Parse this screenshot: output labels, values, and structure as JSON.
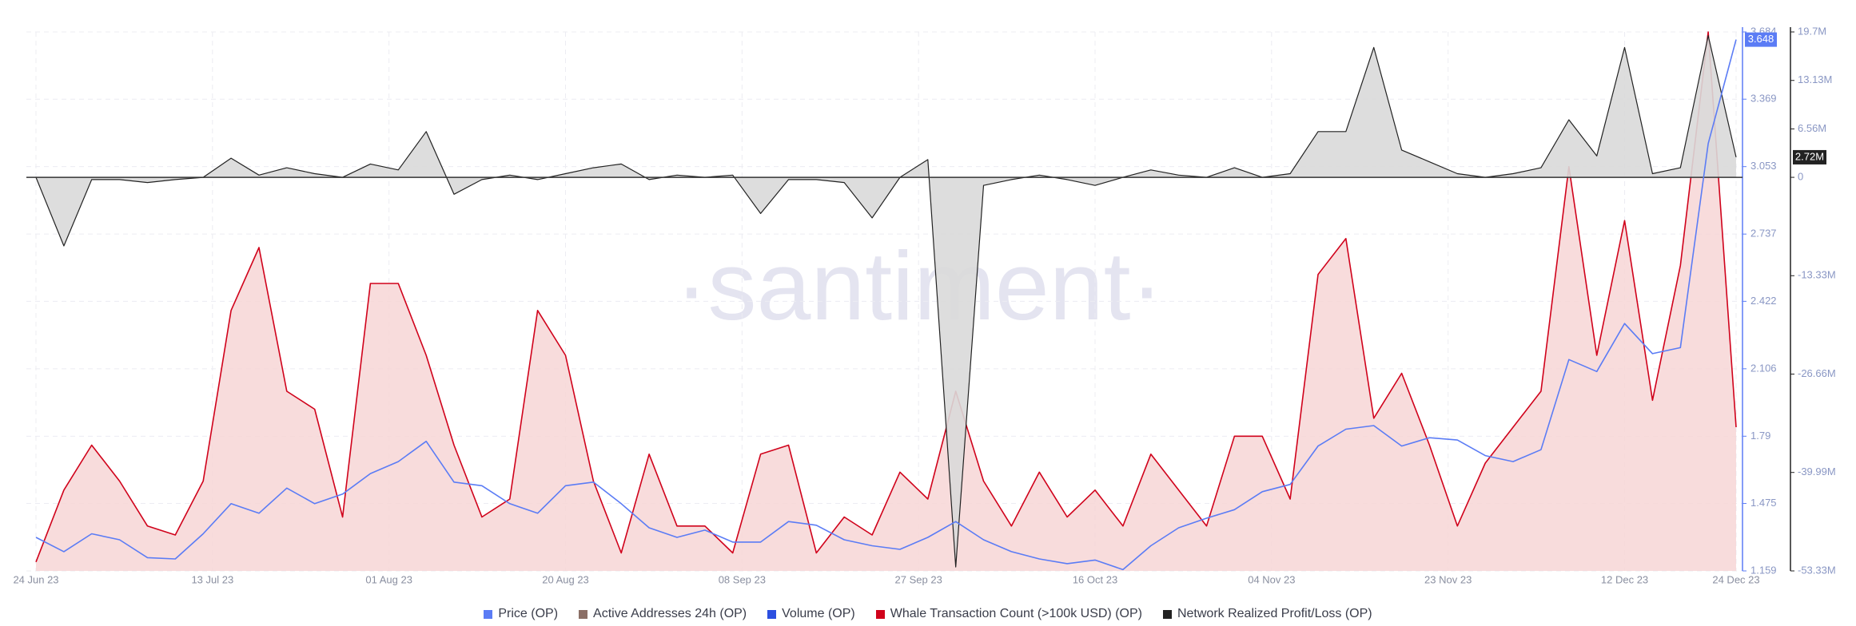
{
  "chart_data": {
    "type": "line",
    "watermark": "·santiment·",
    "x": [
      "2023-06-24",
      "2023-06-27",
      "2023-06-30",
      "2023-07-03",
      "2023-07-06",
      "2023-07-09",
      "2023-07-12",
      "2023-07-15",
      "2023-07-18",
      "2023-07-21",
      "2023-07-24",
      "2023-07-27",
      "2023-07-30",
      "2023-08-02",
      "2023-08-05",
      "2023-08-08",
      "2023-08-11",
      "2023-08-14",
      "2023-08-17",
      "2023-08-20",
      "2023-08-23",
      "2023-08-26",
      "2023-08-29",
      "2023-09-01",
      "2023-09-04",
      "2023-09-07",
      "2023-09-10",
      "2023-09-13",
      "2023-09-16",
      "2023-09-19",
      "2023-09-22",
      "2023-09-25",
      "2023-09-28",
      "2023-10-01",
      "2023-10-04",
      "2023-10-07",
      "2023-10-10",
      "2023-10-13",
      "2023-10-16",
      "2023-10-19",
      "2023-10-22",
      "2023-10-25",
      "2023-10-28",
      "2023-10-31",
      "2023-11-03",
      "2023-11-06",
      "2023-11-09",
      "2023-11-12",
      "2023-11-15",
      "2023-11-18",
      "2023-11-21",
      "2023-11-24",
      "2023-11-27",
      "2023-11-30",
      "2023-12-03",
      "2023-12-06",
      "2023-12-09",
      "2023-12-12",
      "2023-12-15",
      "2023-12-18",
      "2023-12-21",
      "2023-12-24"
    ],
    "xticks": [
      {
        "value": "2023-06-24",
        "label": "24 Jun 23"
      },
      {
        "value": "2023-07-13",
        "label": "13 Jul 23"
      },
      {
        "value": "2023-08-01",
        "label": "01 Aug 23"
      },
      {
        "value": "2023-08-20",
        "label": "20 Aug 23"
      },
      {
        "value": "2023-09-08",
        "label": "08 Sep 23"
      },
      {
        "value": "2023-09-27",
        "label": "27 Sep 23"
      },
      {
        "value": "2023-10-16",
        "label": "16 Oct 23"
      },
      {
        "value": "2023-11-04",
        "label": "04 Nov 23"
      },
      {
        "value": "2023-11-23",
        "label": "23 Nov 23"
      },
      {
        "value": "2023-12-12",
        "label": "12 Dec 23"
      },
      {
        "value": "2023-12-24",
        "label": "24 Dec 23"
      }
    ],
    "ylim": [
      1.159,
      3.684
    ],
    "yticks": [
      1.159,
      1.475,
      1.79,
      2.106,
      2.422,
      2.737,
      3.053,
      3.369,
      3.684
    ],
    "y2lim": [
      -53330000,
      19700000
    ],
    "y2ticks": [
      {
        "value": 19700000,
        "label": "19.7M"
      },
      {
        "value": 13130000,
        "label": "13.13M"
      },
      {
        "value": 6560000,
        "label": "6.56M"
      },
      0,
      {
        "value": -13330000,
        "label": "-13.33M"
      },
      {
        "value": -26660000,
        "label": "-26.66M"
      },
      {
        "value": -39990000,
        "label": "-39.99M"
      },
      {
        "value": -53330000,
        "label": "-53.33M"
      }
    ],
    "y3lim": [
      0,
      60
    ],
    "grid": true,
    "series": [
      {
        "name": "Price (OP)",
        "color": "#5b7cf5",
        "last_value_marker": true,
        "values": [
          1.316,
          1.249,
          1.333,
          1.305,
          1.221,
          1.215,
          1.333,
          1.474,
          1.429,
          1.547,
          1.474,
          1.519,
          1.615,
          1.671,
          1.766,
          1.575,
          1.558,
          1.474,
          1.429,
          1.558,
          1.575,
          1.474,
          1.361,
          1.316,
          1.35,
          1.294,
          1.294,
          1.39,
          1.373,
          1.305,
          1.277,
          1.26,
          1.316,
          1.39,
          1.305,
          1.249,
          1.215,
          1.193,
          1.21,
          1.165,
          1.277,
          1.361,
          1.406,
          1.446,
          1.53,
          1.564,
          1.744,
          1.823,
          1.84,
          1.744,
          1.783,
          1.772,
          1.699,
          1.671,
          1.727,
          2.149,
          2.093,
          2.318,
          2.177,
          2.205,
          3.161,
          3.648
        ]
      },
      {
        "name": "Active Addresses 24h (OP)",
        "color": "#8b6f66"
      },
      {
        "name": "Volume (OP)",
        "color": "#2c4fe0"
      },
      {
        "name": "Whale Transaction Count (>100k USD) (OP)",
        "color": "#d0021b",
        "fill": "#f7d6d6",
        "axis": "y3",
        "values": [
          1,
          9,
          14,
          10,
          5,
          4,
          10,
          29,
          36,
          20,
          18,
          6,
          32,
          32,
          24,
          14,
          6,
          8,
          29,
          24,
          10,
          2,
          13,
          5,
          5,
          2,
          13,
          14,
          2,
          6,
          4,
          11,
          8,
          20,
          10,
          5,
          11,
          6,
          9,
          5,
          13,
          9,
          5,
          15,
          15,
          8,
          33,
          37,
          17,
          22,
          14,
          5,
          12,
          16,
          20,
          45,
          24,
          39,
          19,
          34,
          60,
          16
        ]
      },
      {
        "name": "Network Realized Profit/Loss (OP)",
        "color": "#222222",
        "fill": "#d9d9d9",
        "axis": "y2",
        "last_value_label": "2.72M",
        "values": [
          0,
          -9300000,
          -300000,
          -300000,
          -700000,
          -300000,
          0,
          2600000,
          300000,
          1300000,
          500000,
          0,
          1800000,
          1000000,
          6200000,
          -2300000,
          -300000,
          300000,
          -300000,
          500000,
          1300000,
          1800000,
          -300000,
          300000,
          0,
          300000,
          -4900000,
          -300000,
          -300000,
          -700000,
          -5500000,
          0,
          2400000,
          -52800000,
          -1100000,
          -300000,
          300000,
          -300000,
          -1100000,
          0,
          1000000,
          300000,
          0,
          1300000,
          0,
          500000,
          6200000,
          6200000,
          17600000,
          3700000,
          2100000,
          500000,
          0,
          500000,
          1300000,
          7800000,
          2900000,
          17600000,
          500000,
          1300000,
          19200000,
          2720000
        ]
      }
    ]
  }
}
